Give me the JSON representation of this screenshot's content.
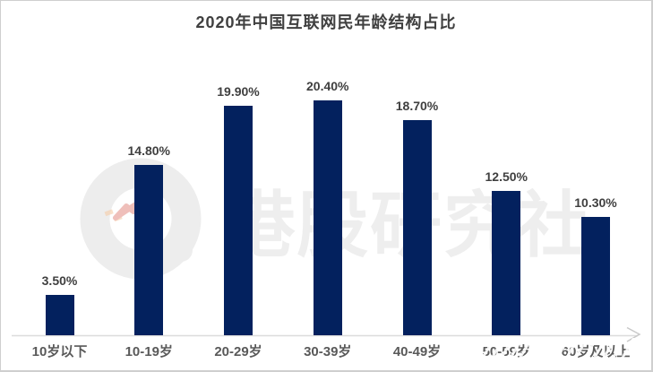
{
  "title": "2020年中国互联网民年龄结构占比",
  "watermark": {
    "text": "港股研究社",
    "logo": "ring-with-arrow-logo",
    "color": "#eeeeee",
    "arrow_color": "#e5968d",
    "dash_color": "#f6cda8"
  },
  "colors": {
    "bar": "#03215e",
    "title_text": "#404040",
    "value_label_text": "#3f3f3f",
    "category_text": "#595959",
    "axis_line": "#dcdcdc",
    "axis_arrow": "#c9c9c9",
    "frame_border": "#cfcfcf"
  },
  "chart_data": {
    "type": "bar",
    "title": "2020年中国互联网民年龄结构占比",
    "categories": [
      "10岁以下",
      "10-19岁",
      "20-29岁",
      "30-39岁",
      "40-49岁",
      "50-59岁",
      "60岁及以上"
    ],
    "values": [
      3.5,
      14.8,
      19.9,
      20.4,
      18.7,
      12.5,
      10.3
    ],
    "value_labels": [
      "3.50%",
      "14.80%",
      "19.90%",
      "20.40%",
      "18.70%",
      "12.50%",
      "10.30%"
    ],
    "xlabel": "",
    "ylabel": "",
    "ylim": [
      0,
      22
    ],
    "grid": false,
    "legend": "none",
    "data_labels_position": "above-bars"
  }
}
